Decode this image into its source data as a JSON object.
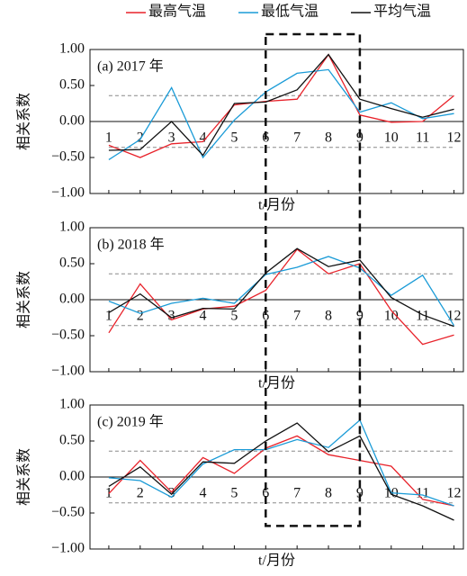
{
  "chart_data": [
    {
      "type": "line",
      "annotation": "(a) 2017 年",
      "xlabel": "t/月份",
      "ylabel": "相关系数",
      "x": [
        1,
        2,
        3,
        4,
        5,
        6,
        7,
        8,
        9,
        10,
        11,
        12
      ],
      "xlim": [
        0.4,
        12.3
      ],
      "xticks": [
        1,
        2,
        3,
        4,
        5,
        6,
        7,
        8,
        9,
        10,
        11,
        12
      ],
      "ylim": [
        -1,
        1
      ],
      "yticks": [
        {
          "value": 1,
          "label": "1.00"
        },
        {
          "value": 0.5,
          "label": "0.50"
        },
        {
          "value": 0,
          "label": "0.00"
        },
        {
          "value": -0.5,
          "label": "−0.50"
        },
        {
          "value": -1,
          "label": "−1.00"
        }
      ],
      "reference_lines": [
        0.36,
        -0.36
      ],
      "highlight": [
        6,
        9
      ],
      "series": [
        {
          "name": "最高气温",
          "color": "#e8222a",
          "values": [
            -0.33,
            -0.5,
            -0.31,
            -0.28,
            0.23,
            0.28,
            0.31,
            0.93,
            0.09,
            -0.01,
            0,
            0.36
          ]
        },
        {
          "name": "最低气温",
          "color": "#1a9bd7",
          "values": [
            -0.53,
            -0.25,
            0.47,
            -0.5,
            0.02,
            0.41,
            0.67,
            0.72,
            0.13,
            0.26,
            0.04,
            0.11
          ]
        },
        {
          "name": "平均气温",
          "color": "#111111",
          "values": [
            -0.4,
            -0.39,
            0,
            -0.47,
            0.25,
            0.27,
            0.44,
            0.93,
            0.31,
            0.18,
            0.06,
            0.17
          ]
        }
      ]
    },
    {
      "type": "line",
      "annotation": "(b) 2018 年",
      "xlabel": "t/月份",
      "ylabel": "相关系数",
      "x": [
        1,
        2,
        3,
        4,
        5,
        6,
        7,
        8,
        9,
        10,
        11,
        12
      ],
      "xlim": [
        0.4,
        12.3
      ],
      "xticks": [
        1,
        2,
        3,
        4,
        5,
        6,
        7,
        8,
        9,
        10,
        11,
        12
      ],
      "ylim": [
        -1,
        1
      ],
      "yticks": [
        {
          "value": 1,
          "label": "1.00"
        },
        {
          "value": 0.5,
          "label": "0.50"
        },
        {
          "value": 0,
          "label": "0.00"
        },
        {
          "value": -0.5,
          "label": "−0.50"
        },
        {
          "value": -1,
          "label": "−1.00"
        }
      ],
      "reference_lines": [
        0.36,
        -0.36
      ],
      "series": [
        {
          "color": "#e8222a",
          "values": [
            -0.46,
            0.22,
            -0.28,
            -0.13,
            -0.09,
            0.13,
            0.7,
            0.36,
            0.5,
            -0.15,
            -0.62,
            -0.49
          ]
        },
        {
          "color": "#1a9bd7",
          "values": [
            -0.02,
            -0.19,
            -0.05,
            0.02,
            -0.05,
            0.35,
            0.45,
            0.6,
            0.44,
            0.06,
            0.34,
            -0.36
          ]
        },
        {
          "color": "#111111",
          "values": [
            -0.18,
            0.08,
            -0.25,
            -0.12,
            -0.13,
            0.37,
            0.71,
            0.46,
            0.55,
            0.03,
            -0.21,
            -0.37
          ]
        }
      ]
    },
    {
      "type": "line",
      "annotation": "(c) 2019 年",
      "xlabel": "t/月份",
      "ylabel": "相关系数",
      "x": [
        1,
        2,
        3,
        4,
        5,
        6,
        7,
        8,
        9,
        10,
        11,
        12
      ],
      "xlim": [
        0.4,
        12.3
      ],
      "xticks": [
        1,
        2,
        3,
        4,
        5,
        6,
        7,
        8,
        9,
        10,
        11,
        12
      ],
      "ylim": [
        -1,
        1
      ],
      "yticks": [
        {
          "value": 1,
          "label": "1.00"
        },
        {
          "value": 0.5,
          "label": "0.50"
        },
        {
          "value": 0,
          "label": "0.00"
        },
        {
          "value": -0.5,
          "label": "−0.50"
        },
        {
          "value": -1,
          "label": "−1.00"
        }
      ],
      "reference_lines": [
        0.36,
        -0.36
      ],
      "series": [
        {
          "color": "#e8222a",
          "values": [
            -0.23,
            0.23,
            -0.21,
            0.27,
            0.05,
            0.4,
            0.57,
            0.31,
            0.23,
            0.15,
            -0.31,
            -0.4
          ]
        },
        {
          "color": "#1a9bd7",
          "values": [
            -0.01,
            -0.05,
            -0.28,
            0.18,
            0.38,
            0.38,
            0.52,
            0.41,
            0.79,
            -0.22,
            -0.25,
            -0.4
          ]
        },
        {
          "color": "#111111",
          "values": [
            -0.13,
            0.14,
            -0.24,
            0.21,
            0.19,
            0.5,
            0.75,
            0.35,
            0.57,
            -0.24,
            -0.4,
            -0.6
          ]
        }
      ]
    }
  ]
}
